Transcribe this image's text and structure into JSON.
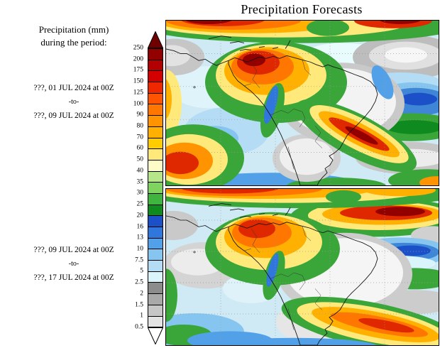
{
  "title": "Precipitation Forecasts",
  "sidebar": {
    "heading_line1": "Precipitation (mm)",
    "heading_line2": "during the period:",
    "period1": {
      "from": "???, 01 JUL 2024 at 00Z",
      "separator": "-to-",
      "to": "???, 09 JUL 2024 at 00Z"
    },
    "period2": {
      "from": "???, 09 JUL 2024 at 00Z",
      "separator": "-to-",
      "to": "???, 17 JUL 2024 at 00Z"
    }
  },
  "colorbar": {
    "labels": [
      "250",
      "200",
      "175",
      "150",
      "125",
      "100",
      "90",
      "80",
      "70",
      "60",
      "50",
      "40",
      "35",
      "30",
      "25",
      "20",
      "16",
      "13",
      "10",
      "7.5",
      "5",
      "2.5",
      "2",
      "1.5",
      "1",
      "0.5"
    ],
    "segment_colors_top_to_bottom": [
      "#920000",
      "#b30000",
      "#d40000",
      "#f02800",
      "#ff5500",
      "#ff7700",
      "#ff9400",
      "#ffb000",
      "#ffcc00",
      "#ffe97a",
      "#fdfbc8",
      "#b7e58a",
      "#7fd35f",
      "#3fb53f",
      "#0f8a1f",
      "#1b50c8",
      "#2f77dd",
      "#52a0e8",
      "#86c5f0",
      "#b4ddf5",
      "#d9f4fb",
      "#8c8c8c",
      "#a9a9a9",
      "#c6c6c6",
      "#e3e3e3"
    ],
    "above_max_color": "#700000",
    "below_min_color": "#ffffff"
  }
}
